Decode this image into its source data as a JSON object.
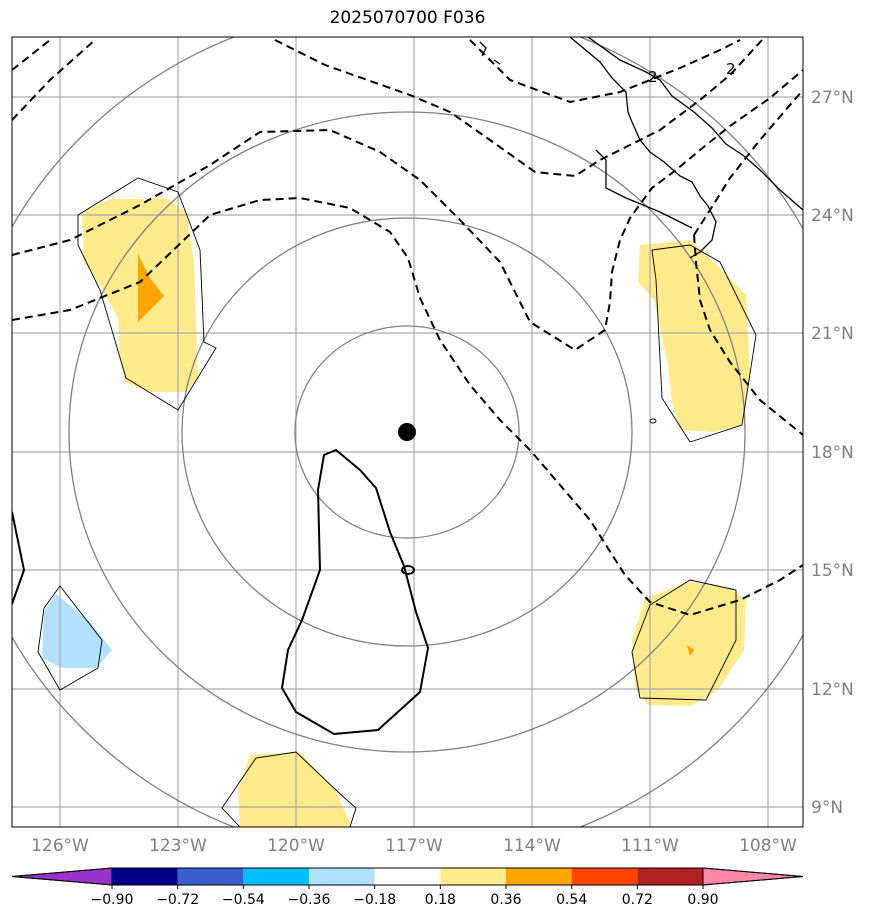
{
  "title": "2025070700 F036",
  "lon_labels": [
    "126°W",
    "123°W",
    "120°W",
    "117°W",
    "114°W",
    "111°W",
    "108°W"
  ],
  "lat_labels": [
    "27°N",
    "24°N",
    "21°N",
    "18°N",
    "15°N",
    "12°N",
    "9°N"
  ],
  "contour_labels": [
    "2",
    "2"
  ],
  "colorbar": {
    "colors": [
      "#9933cc",
      "#00008b",
      "#3a5fcd",
      "#00bfff",
      "#b2e0ff",
      "#ffffff",
      "#ffeb8c",
      "#ffa500",
      "#ff4500",
      "#b22222",
      "#ff88aa"
    ],
    "tick_labels": [
      "−0.90",
      "−0.72",
      "−0.54",
      "−0.36",
      "−0.18",
      "0.18",
      "0.36",
      "0.54",
      "0.72",
      "0.90"
    ]
  },
  "colors": {
    "graticule": "#aaaaaa",
    "range_rings": "#808080",
    "fill_positive_low": "#ffeb8c",
    "fill_positive_mid": "#ffa500",
    "fill_negative_low": "#b2e0ff",
    "contour": "#000000"
  }
}
